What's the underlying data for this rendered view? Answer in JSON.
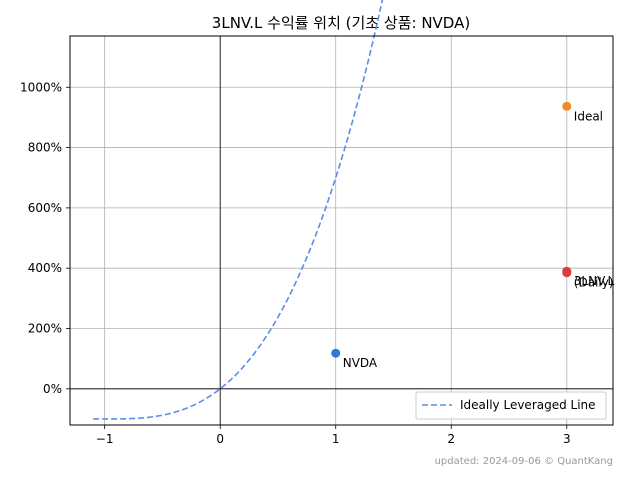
{
  "chart_data": {
    "type": "scatter",
    "title": "3LNV.L 수익률 위치 (기초 상품: NVDA)",
    "xlabel": "",
    "ylabel": "",
    "xlim": [
      -1.3,
      3.4
    ],
    "ylim": [
      -120,
      1170
    ],
    "x_ticks": [
      -1,
      0,
      1,
      2,
      3
    ],
    "x_tick_labels": [
      "−1",
      "0",
      "1",
      "2",
      "3"
    ],
    "y_ticks": [
      0,
      200,
      400,
      600,
      800,
      1000
    ],
    "y_tick_labels": [
      "0%",
      "200%",
      "400%",
      "600%",
      "800%",
      "1000%"
    ],
    "grid": true,
    "legend_position": "lower-right",
    "legend": "Ideally Leveraged Line",
    "line": {
      "name": "Ideally Leveraged Line",
      "style": "dashed",
      "color": "#5b8ee6",
      "formula": "((1+x)^3 - 1) * 100",
      "x_range": [
        -1.1,
        3.18
      ]
    },
    "points": [
      {
        "label": "NVDA",
        "x": 1.0,
        "y": 118,
        "color": "#2b7bd4"
      },
      {
        "label": "Ideal",
        "x": 3.0,
        "y": 937,
        "color": "#f08a24"
      },
      {
        "label": "3LNV.L",
        "x": 3.0,
        "y": 390,
        "color": "#e03b3b"
      },
      {
        "label": "(Daily)",
        "x": 3.0,
        "y": 385,
        "color": "#e03b3b"
      }
    ],
    "footer": "updated: 2024-09-06 © QuantKang"
  }
}
